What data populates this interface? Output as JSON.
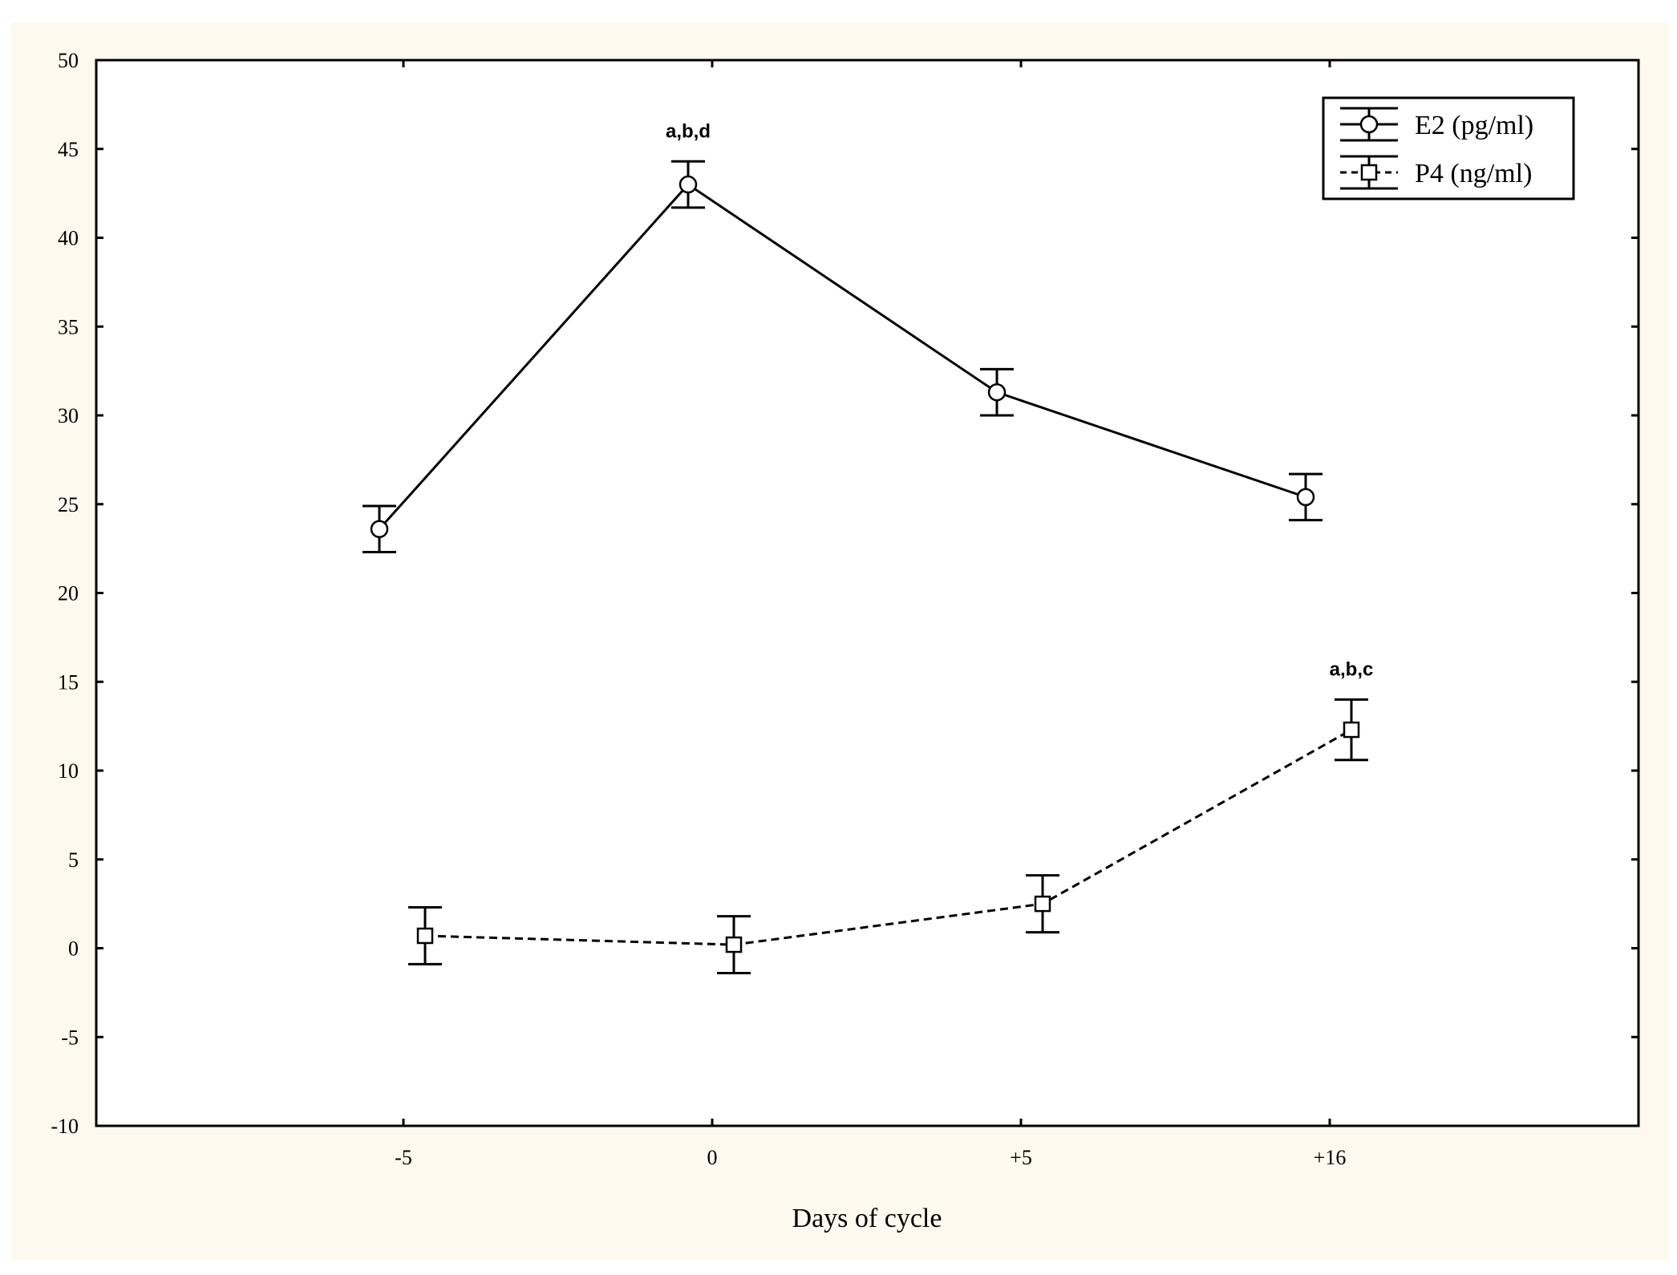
{
  "chart_data": {
    "type": "line",
    "xlabel": "Days of cycle",
    "ylabel": "",
    "categories": [
      "-5",
      "0",
      "+5",
      "+16"
    ],
    "ylim": [
      -10,
      50
    ],
    "yticks": [
      50,
      45,
      40,
      35,
      30,
      25,
      20,
      15,
      10,
      5,
      0,
      -5,
      -10
    ],
    "grid": false,
    "legend_position": "top-right",
    "series": [
      {
        "name": "E2 (pg/ml)",
        "marker": "circle",
        "line": "solid",
        "values": [
          23.6,
          43.0,
          31.3,
          25.4
        ],
        "error": [
          1.3,
          1.3,
          1.3,
          1.3
        ]
      },
      {
        "name": "P4 (ng/ml)",
        "marker": "square",
        "line": "dashed",
        "values": [
          0.7,
          0.2,
          2.5,
          12.3
        ],
        "error": [
          1.6,
          1.6,
          1.6,
          1.7
        ]
      }
    ],
    "annotations": [
      {
        "series": 0,
        "category": "0",
        "text": "a,b,d"
      },
      {
        "series": 1,
        "category": "+16",
        "text": "a,b,c"
      }
    ]
  }
}
